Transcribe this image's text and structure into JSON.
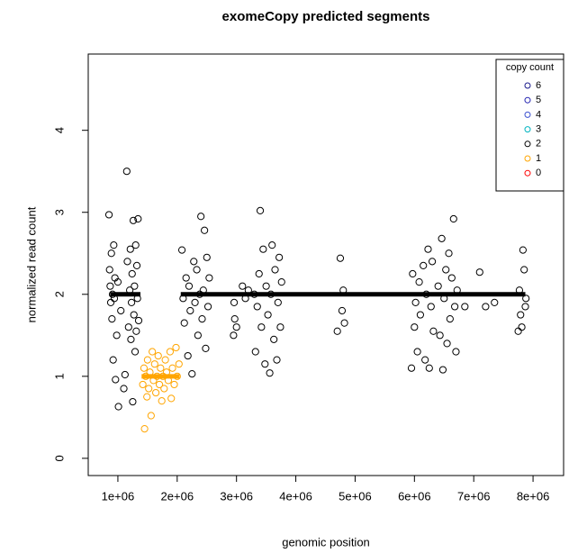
{
  "chart_data": {
    "type": "scatter",
    "title": "exomeCopy predicted segments",
    "x_label": "genomic position",
    "y_label": "normalized read count",
    "xlim": [
      500000,
      8515000
    ],
    "ylim": [
      -0.21,
      4.93
    ],
    "xticks": [
      {
        "value": 1000000,
        "label": "1e+06"
      },
      {
        "value": 2000000,
        "label": "2e+06"
      },
      {
        "value": 3000000,
        "label": "3e+06"
      },
      {
        "value": 4000000,
        "label": "4e+06"
      },
      {
        "value": 5000000,
        "label": "5e+06"
      },
      {
        "value": 6000000,
        "label": "6e+06"
      },
      {
        "value": 7000000,
        "label": "7e+06"
      },
      {
        "value": 8000000,
        "label": "8e+06"
      }
    ],
    "yticks": [
      0,
      1,
      2,
      3,
      4
    ],
    "legend_title": "copy count",
    "legend_position": "topright",
    "series": [
      {
        "name": "6",
        "color": "#1a1a8c",
        "x": [],
        "values": []
      },
      {
        "name": "5",
        "color": "#2020b0",
        "x": [],
        "values": []
      },
      {
        "name": "4",
        "color": "#3a4fd0",
        "x": [],
        "values": []
      },
      {
        "name": "3",
        "color": "#00b4c0",
        "x": [],
        "values": []
      },
      {
        "name": "2",
        "color": "#000000",
        "x": [
          850000,
          860000,
          870000,
          880000,
          890000,
          900000,
          910000,
          920000,
          930000,
          940000,
          950000,
          960000,
          980000,
          1000000,
          1010000,
          1050000,
          1100000,
          1120000,
          1150000,
          1160000,
          1180000,
          1200000,
          1210000,
          1220000,
          1230000,
          1240000,
          1250000,
          1260000,
          1270000,
          1280000,
          1290000,
          1300000,
          1310000,
          1320000,
          1330000,
          1340000,
          1350000,
          2080000,
          2100000,
          2120000,
          2150000,
          2180000,
          2200000,
          2220000,
          2250000,
          2280000,
          2300000,
          2330000,
          2350000,
          2380000,
          2400000,
          2420000,
          2440000,
          2460000,
          2480000,
          2500000,
          2520000,
          2540000,
          2950000,
          2960000,
          2970000,
          3000000,
          3100000,
          3150000,
          3200000,
          3300000,
          3320000,
          3350000,
          3380000,
          3400000,
          3420000,
          3450000,
          3480000,
          3500000,
          3530000,
          3560000,
          3580000,
          3600000,
          3630000,
          3650000,
          3680000,
          3700000,
          3720000,
          3740000,
          3760000,
          4700000,
          4750000,
          4780000,
          4800000,
          4820000,
          5950000,
          5970000,
          6000000,
          6020000,
          6050000,
          6080000,
          6100000,
          6150000,
          6180000,
          6200000,
          6230000,
          6250000,
          6280000,
          6300000,
          6320000,
          6400000,
          6430000,
          6460000,
          6480000,
          6500000,
          6530000,
          6550000,
          6580000,
          6600000,
          6630000,
          6660000,
          6680000,
          6700000,
          6720000,
          6850000,
          7100000,
          7200000,
          7350000,
          7750000,
          7770000,
          7790000,
          7810000,
          7830000,
          7850000,
          7870000,
          7880000
        ],
        "values": [
          2.97,
          2.3,
          2.1,
          1.9,
          2.5,
          1.7,
          2.0,
          1.2,
          2.6,
          1.95,
          2.2,
          0.96,
          1.5,
          2.15,
          0.63,
          1.8,
          0.85,
          1.02,
          3.5,
          2.4,
          1.6,
          2.05,
          2.55,
          1.45,
          1.9,
          2.25,
          0.69,
          2.9,
          1.75,
          2.1,
          1.3,
          2.6,
          1.55,
          2.35,
          1.95,
          2.92,
          1.68,
          2.54,
          1.95,
          1.65,
          2.2,
          1.25,
          2.1,
          1.8,
          1.03,
          2.4,
          1.9,
          2.3,
          1.5,
          2.0,
          2.95,
          1.7,
          2.05,
          2.78,
          1.34,
          2.45,
          1.85,
          2.2,
          1.5,
          1.9,
          1.7,
          1.6,
          2.1,
          1.95,
          2.05,
          2.0,
          1.3,
          1.85,
          2.25,
          3.02,
          1.6,
          2.55,
          1.15,
          2.1,
          1.75,
          1.04,
          2.0,
          2.6,
          1.45,
          2.3,
          1.2,
          1.9,
          2.45,
          1.6,
          2.15,
          1.55,
          2.44,
          1.8,
          2.05,
          1.65,
          1.1,
          2.25,
          1.6,
          1.9,
          1.3,
          2.15,
          1.75,
          2.35,
          1.2,
          2.0,
          2.55,
          1.1,
          1.85,
          2.4,
          1.55,
          2.1,
          1.5,
          2.68,
          1.08,
          1.95,
          2.3,
          1.4,
          2.5,
          1.7,
          2.2,
          2.92,
          1.85,
          1.3,
          2.05,
          1.85,
          2.27,
          1.85,
          1.9,
          1.55,
          2.05,
          1.75,
          1.6,
          2.54,
          2.3,
          1.85,
          1.95
        ]
      },
      {
        "name": "1",
        "color": "#ffa500",
        "x": [
          1420000,
          1440000,
          1450000,
          1470000,
          1490000,
          1500000,
          1520000,
          1540000,
          1560000,
          1580000,
          1600000,
          1620000,
          1640000,
          1660000,
          1680000,
          1700000,
          1720000,
          1740000,
          1760000,
          1780000,
          1800000,
          1820000,
          1850000,
          1880000,
          1900000,
          1920000,
          1950000,
          1980000,
          2000000,
          2030000
        ],
        "values": [
          0.9,
          1.1,
          0.36,
          1.0,
          0.75,
          1.2,
          0.85,
          1.05,
          0.52,
          1.3,
          0.95,
          1.15,
          0.8,
          1.0,
          1.25,
          0.9,
          1.1,
          0.7,
          1.0,
          0.85,
          1.2,
          1.05,
          0.95,
          1.3,
          0.73,
          1.1,
          0.9,
          1.35,
          1.0,
          1.15
        ]
      },
      {
        "name": "0",
        "color": "#ff0000",
        "x": [],
        "values": []
      }
    ],
    "segments": [
      {
        "x": [
          870000,
          1380000
        ],
        "y": 2,
        "color": "#000000"
      },
      {
        "x": [
          1400000,
          2040000
        ],
        "y": 1,
        "color": "#ffa500"
      },
      {
        "x": [
          2060000,
          7870000
        ],
        "y": 2,
        "color": "#000000"
      }
    ]
  }
}
